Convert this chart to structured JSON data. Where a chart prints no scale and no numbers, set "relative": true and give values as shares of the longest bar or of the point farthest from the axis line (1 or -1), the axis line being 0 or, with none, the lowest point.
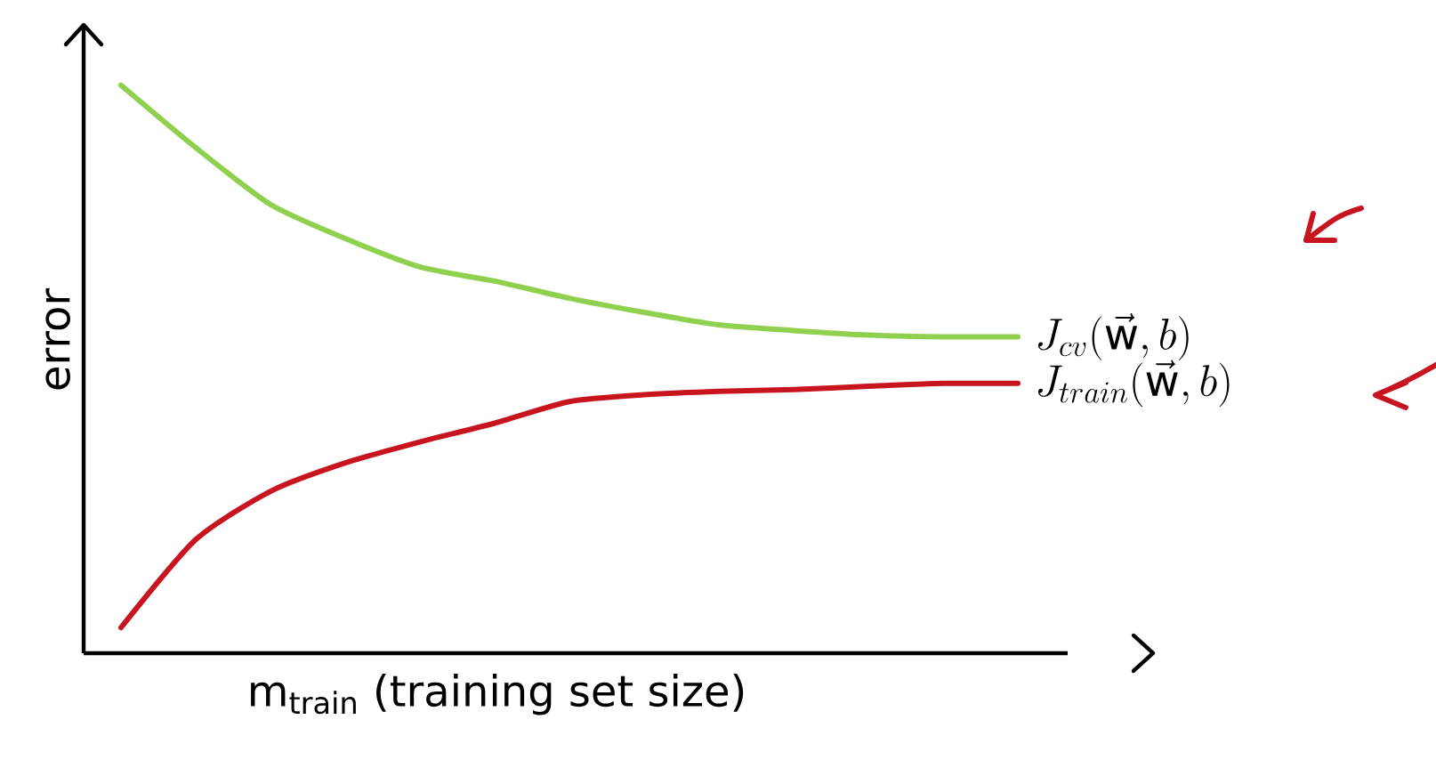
{
  "chart_data": {
    "type": "line",
    "relative": true,
    "xlabel": "m$_{train}$ (training set size)",
    "ylabel": "error",
    "categories": [
      null,
      null,
      null,
      null,
      null,
      null,
      null,
      null,
      null,
      null,
      null,
      null,
      null
    ],
    "series": [
      {
        "name": "J_{cv}(\\vec{\\mathrm{w}}, b)",
        "color": "#8fd14f",
        "values": [
          1.0,
          0.89,
          0.79,
          0.73,
          0.68,
          0.655,
          0.625,
          0.6,
          0.578,
          0.568,
          0.56,
          0.557,
          0.557
        ]
      },
      {
        "name": "J_{train}(\\vec{\\mathrm{w}}, b)",
        "color": "#c8141e",
        "values": [
          0.045,
          0.2,
          0.285,
          0.335,
          0.372,
          0.405,
          0.443,
          0.455,
          0.461,
          0.464,
          0.47,
          0.475,
          0.475
        ]
      }
    ]
  }
}
